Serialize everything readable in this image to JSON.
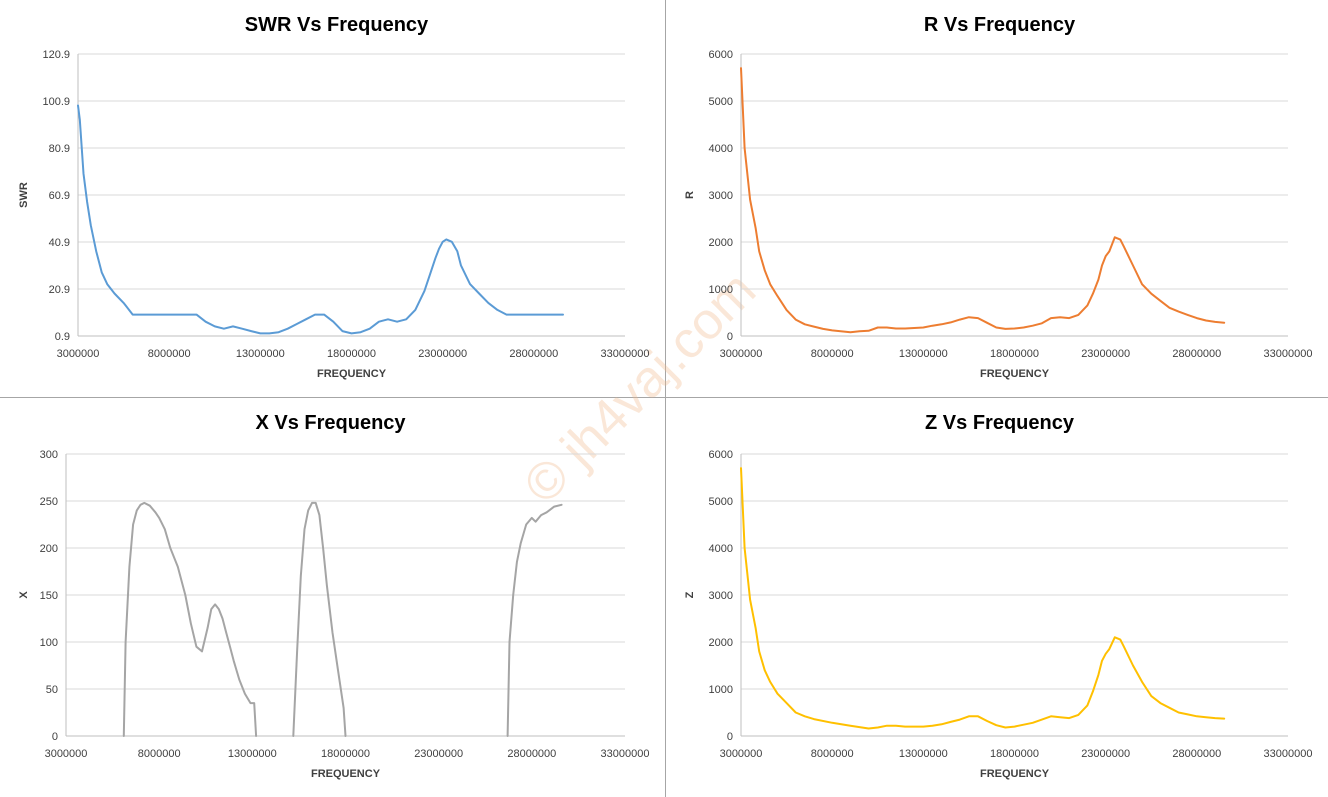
{
  "watermark": "© jh4vaj.com",
  "chart_data": [
    {
      "type": "line",
      "title": "SWR Vs Frequency",
      "xlabel": "FREQUENCY",
      "ylabel": "SWR",
      "xlim": [
        3000000,
        33000000
      ],
      "ylim": [
        0.9,
        120.9
      ],
      "xticks": [
        3000000,
        8000000,
        13000000,
        18000000,
        23000000,
        28000000,
        33000000
      ],
      "yticks": [
        0.9,
        20.9,
        40.9,
        60.9,
        80.9,
        100.9,
        120.9
      ],
      "ytick_labels": [
        "0.9",
        "20.9",
        "40.9",
        "60.9",
        "80.9",
        "100.9",
        "120.9"
      ],
      "grid": "horizontal",
      "legend": "none",
      "color": "#5b9bd5",
      "series": [
        {
          "x": [
            3000000,
            3100000,
            3300000,
            3500000,
            3700000,
            4000000,
            4300000,
            4600000,
            5000000,
            5500000,
            6000000,
            6500000,
            7000000,
            8000000,
            9000000,
            9500000,
            10000000,
            10500000,
            11000000,
            11500000,
            12000000,
            12500000,
            13000000,
            13500000,
            14000000,
            14500000,
            15000000,
            15500000,
            16000000,
            16500000,
            17000000,
            17500000,
            18000000,
            18500000,
            19000000,
            19500000,
            20000000,
            20500000,
            21000000,
            21500000,
            22000000,
            22300000,
            22600000,
            22800000,
            23000000,
            23200000,
            23500000,
            23800000,
            24000000,
            24500000,
            25000000,
            25500000,
            26000000,
            26500000,
            27000000,
            27500000,
            28000000,
            29000000,
            29600000
          ],
          "values": [
            99,
            93,
            70,
            58,
            48,
            37,
            28,
            23,
            19,
            15,
            10,
            10,
            10,
            10,
            10,
            10,
            7,
            5,
            4,
            5,
            4,
            3,
            2,
            2,
            2.5,
            4,
            6,
            8,
            10,
            10,
            7,
            3,
            2,
            2.5,
            4,
            7,
            8,
            7,
            8,
            12,
            20,
            27,
            34,
            38,
            41,
            42,
            41,
            37,
            31,
            23,
            19,
            15,
            12,
            10,
            10,
            10,
            10,
            10,
            10
          ]
        }
      ]
    },
    {
      "type": "line",
      "title": "R Vs Frequency",
      "xlabel": "FREQUENCY",
      "ylabel": "R",
      "xlim": [
        3000000,
        33000000
      ],
      "ylim": [
        0,
        6000
      ],
      "xticks": [
        3000000,
        8000000,
        13000000,
        18000000,
        23000000,
        28000000,
        33000000
      ],
      "yticks": [
        0,
        1000,
        2000,
        3000,
        4000,
        5000,
        6000
      ],
      "ytick_labels": [
        "0",
        "1000",
        "2000",
        "3000",
        "4000",
        "5000",
        "6000"
      ],
      "grid": "horizontal",
      "legend": "none",
      "color": "#ed7d31",
      "series": [
        {
          "x": [
            3000000,
            3200000,
            3500000,
            3800000,
            4000000,
            4300000,
            4600000,
            5000000,
            5500000,
            6000000,
            6500000,
            7000000,
            7500000,
            8000000,
            9000000,
            9500000,
            10000000,
            10500000,
            11000000,
            11500000,
            12000000,
            13000000,
            13500000,
            14000000,
            14500000,
            15000000,
            15500000,
            16000000,
            16500000,
            17000000,
            17500000,
            18000000,
            18500000,
            19000000,
            19500000,
            20000000,
            20500000,
            21000000,
            21500000,
            22000000,
            22300000,
            22600000,
            22800000,
            23000000,
            23200000,
            23500000,
            23800000,
            24000000,
            24500000,
            25000000,
            25500000,
            26000000,
            26500000,
            27000000,
            27500000,
            28000000,
            28500000,
            29000000,
            29500000
          ],
          "values": [
            5700,
            4000,
            2900,
            2300,
            1800,
            1400,
            1100,
            850,
            550,
            350,
            250,
            200,
            150,
            120,
            80,
            100,
            110,
            180,
            180,
            160,
            160,
            180,
            220,
            250,
            290,
            350,
            400,
            380,
            280,
            180,
            150,
            160,
            180,
            220,
            270,
            380,
            400,
            380,
            450,
            650,
            900,
            1200,
            1500,
            1700,
            1800,
            2100,
            2050,
            1900,
            1500,
            1100,
            900,
            750,
            600,
            520,
            450,
            380,
            330,
            300,
            280
          ]
        }
      ]
    },
    {
      "type": "line",
      "title": "X Vs Frequency",
      "xlabel": "FREQUENCY",
      "ylabel": "X",
      "xlim": [
        3000000,
        33000000
      ],
      "ylim": [
        0,
        300
      ],
      "xticks": [
        3000000,
        8000000,
        13000000,
        18000000,
        23000000,
        28000000,
        33000000
      ],
      "yticks": [
        0,
        50,
        100,
        150,
        200,
        250,
        300
      ],
      "ytick_labels": [
        "0",
        "50",
        "100",
        "150",
        "200",
        "250",
        "300"
      ],
      "grid": "horizontal",
      "legend": "none",
      "color": "#a5a5a5",
      "series": [
        {
          "x": [
            6100000,
            6200000,
            6400000,
            6600000,
            6800000,
            7000000,
            7200000,
            7500000,
            7800000,
            8000000,
            8300000,
            8600000,
            9000000,
            9400000,
            9700000,
            10000000,
            10300000,
            10600000,
            10800000,
            11000000,
            11200000,
            11400000,
            11600000,
            11800000,
            12000000,
            12300000,
            12600000,
            12900000,
            13100000,
            13200000
          ],
          "values": [
            0,
            100,
            180,
            225,
            240,
            246,
            248,
            245,
            238,
            232,
            220,
            200,
            180,
            150,
            120,
            95,
            90,
            115,
            135,
            140,
            135,
            125,
            110,
            95,
            80,
            60,
            45,
            35,
            35,
            0
          ]
        },
        {
          "x": [
            15200000,
            15400000,
            15600000,
            15800000,
            16000000,
            16200000,
            16400000,
            16600000,
            16800000,
            17000000,
            17300000,
            17600000,
            17900000,
            18000000
          ],
          "values": [
            0,
            90,
            170,
            220,
            240,
            248,
            248,
            235,
            200,
            160,
            110,
            70,
            30,
            0
          ]
        },
        {
          "x": [
            26700000,
            26800000,
            27000000,
            27200000,
            27400000,
            27700000,
            28000000,
            28200000,
            28500000,
            28800000,
            29200000,
            29600000
          ],
          "values": [
            0,
            100,
            150,
            185,
            205,
            225,
            232,
            228,
            235,
            238,
            244,
            246
          ]
        }
      ]
    },
    {
      "type": "line",
      "title": "Z Vs Frequency",
      "xlabel": "FREQUENCY",
      "ylabel": "Z",
      "xlim": [
        3000000,
        33000000
      ],
      "ylim": [
        0,
        6000
      ],
      "xticks": [
        3000000,
        8000000,
        13000000,
        18000000,
        23000000,
        28000000,
        33000000
      ],
      "yticks": [
        0,
        1000,
        2000,
        3000,
        4000,
        5000,
        6000
      ],
      "ytick_labels": [
        "0",
        "1000",
        "2000",
        "3000",
        "4000",
        "5000",
        "6000"
      ],
      "grid": "horizontal",
      "legend": "none",
      "color": "#ffc000",
      "series": [
        {
          "x": [
            3000000,
            3200000,
            3500000,
            3800000,
            4000000,
            4300000,
            4600000,
            5000000,
            5500000,
            6000000,
            6500000,
            7000000,
            8000000,
            9000000,
            10000000,
            10500000,
            11000000,
            11500000,
            12000000,
            13000000,
            13500000,
            14000000,
            14500000,
            15000000,
            15500000,
            16000000,
            16500000,
            17000000,
            17500000,
            18000000,
            18500000,
            19000000,
            19500000,
            20000000,
            20500000,
            21000000,
            21500000,
            22000000,
            22300000,
            22600000,
            22800000,
            23000000,
            23200000,
            23500000,
            23800000,
            24000000,
            24500000,
            25000000,
            25500000,
            26000000,
            26500000,
            27000000,
            27500000,
            28000000,
            28500000,
            29000000,
            29500000
          ],
          "values": [
            5700,
            4000,
            2900,
            2300,
            1800,
            1400,
            1150,
            900,
            700,
            500,
            420,
            360,
            280,
            220,
            160,
            180,
            220,
            220,
            200,
            200,
            220,
            250,
            300,
            350,
            420,
            420,
            320,
            230,
            180,
            200,
            240,
            280,
            350,
            420,
            400,
            380,
            450,
            650,
            950,
            1300,
            1600,
            1750,
            1850,
            2100,
            2050,
            1900,
            1500,
            1150,
            850,
            700,
            600,
            500,
            460,
            420,
            400,
            380,
            370
          ]
        }
      ]
    }
  ]
}
